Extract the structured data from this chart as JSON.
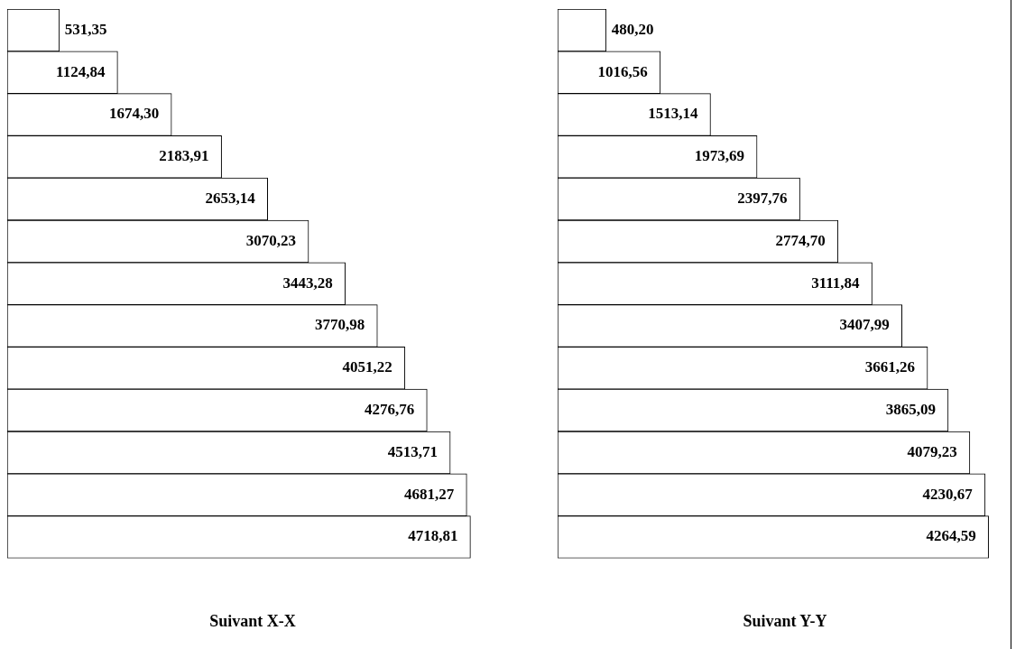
{
  "chart_data": [
    {
      "type": "bar",
      "orientation": "horizontal",
      "title": "Suivant X-X",
      "categories": [
        null,
        null,
        null,
        null,
        null,
        null,
        null,
        null,
        null,
        null,
        null,
        null,
        null
      ],
      "tick_labels": false,
      "grid": false,
      "legend": false,
      "data_labels": true,
      "values": [
        531.35,
        1124.84,
        1674.3,
        2183.91,
        2653.14,
        3070.23,
        3443.28,
        3770.98,
        4051.22,
        4276.76,
        4513.71,
        4681.27,
        4718.81
      ],
      "value_labels": [
        "531,35",
        "1124,84",
        "1674,30",
        "2183,91",
        "2653,14",
        "3070,23",
        "3443,28",
        "3770,98",
        "4051,22",
        "4276,76",
        "4513,71",
        "4681,27",
        "4718,81"
      ],
      "color": "#ffffff"
    },
    {
      "type": "bar",
      "orientation": "horizontal",
      "title": "Suivant Y-Y",
      "categories": [
        null,
        null,
        null,
        null,
        null,
        null,
        null,
        null,
        null,
        null,
        null,
        null,
        null
      ],
      "tick_labels": false,
      "grid": false,
      "legend": false,
      "data_labels": true,
      "values": [
        480.2,
        1016.56,
        1513.14,
        1973.69,
        2397.76,
        2774.7,
        3111.84,
        3407.99,
        3661.26,
        3865.09,
        4079.23,
        4230.67,
        4264.59
      ],
      "value_labels": [
        "480,20",
        "1016,56",
        "1513,14",
        "1973,69",
        "2397,76",
        "2774,70",
        "3111,84",
        "3407,99",
        "3661,26",
        "3865,09",
        "4079,23",
        "4230,67",
        "4264,59"
      ],
      "color": "#ffffff"
    }
  ]
}
